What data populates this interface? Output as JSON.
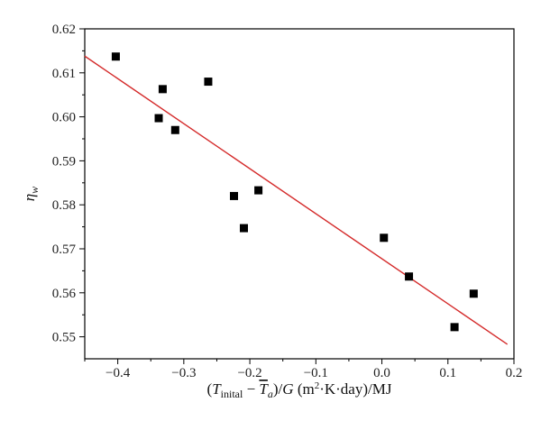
{
  "chart_data": {
    "type": "scatter",
    "title": "",
    "xlabel": "(T_inital − T̄_a)/G (m²·K·day)/MJ",
    "ylabel": "η_w",
    "xlim": [
      -0.45,
      0.2
    ],
    "ylim": [
      0.545,
      0.62
    ],
    "xticks": [
      -0.4,
      -0.3,
      -0.2,
      -0.1,
      0.0,
      0.1,
      0.2
    ],
    "xtick_labels": [
      "−0.4",
      "−0.3",
      "−0.2",
      "−0.1",
      "0.0",
      "0.1",
      "0.2"
    ],
    "yticks": [
      0.55,
      0.56,
      0.57,
      0.58,
      0.59,
      0.6,
      0.61,
      0.62
    ],
    "ytick_labels": [
      "0.55",
      "0.56",
      "0.57",
      "0.58",
      "0.59",
      "0.60",
      "0.61",
      "0.62"
    ],
    "grid": false,
    "marker_color": "#000000",
    "series": [
      {
        "x": [
          -0.403,
          -0.332,
          -0.338,
          -0.313,
          -0.263,
          -0.224,
          -0.209,
          -0.187,
          0.003,
          0.041,
          0.11,
          0.139
        ],
        "y": [
          0.6137,
          0.6063,
          0.5997,
          0.597,
          0.608,
          0.582,
          0.5747,
          0.5833,
          0.5725,
          0.5637,
          0.5522,
          0.5598
        ]
      }
    ],
    "fit_line": {
      "color": "#d42a2a",
      "x": [
        -0.45,
        0.19
      ],
      "y": [
        0.6138,
        0.5483
      ]
    }
  }
}
